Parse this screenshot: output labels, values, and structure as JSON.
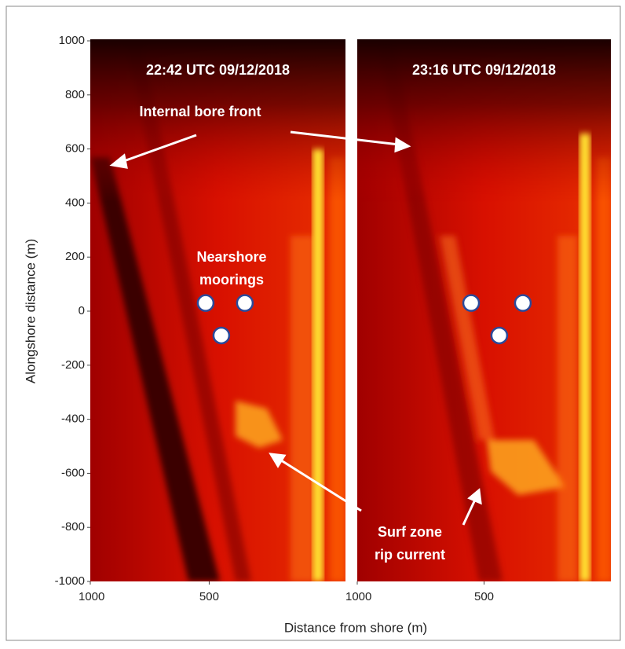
{
  "chart_data": {
    "type": "image",
    "ylabel": "Alongshore distance (m)",
    "xlabel": "Distance from shore (m)",
    "ylim": [
      -1000,
      1000
    ],
    "yticks": [
      1000,
      800,
      600,
      400,
      200,
      0,
      -200,
      -400,
      -600,
      -800,
      -1000
    ],
    "panels": [
      {
        "title": "22:42 UTC 09/12/2018",
        "xlim": [
          1000,
          -73
        ],
        "xticks": [
          1000,
          500
        ],
        "moorings": {
          "x": [
            515,
            350,
            449
          ],
          "y": [
            30,
            30,
            -90
          ]
        }
      },
      {
        "title": "23:16 UTC 09/12/2018",
        "xlim": [
          1000,
          0
        ],
        "xticks": [
          1000,
          500
        ],
        "moorings": {
          "x": [
            551,
            347,
            440
          ],
          "y": [
            30,
            30,
            -90
          ]
        }
      }
    ],
    "annotations": [
      {
        "lines": [
          "Internal bore front"
        ]
      },
      {
        "lines": [
          "Nearshore",
          "moorings"
        ]
      },
      {
        "lines": [
          "Surf zone",
          "rip current"
        ]
      }
    ]
  }
}
